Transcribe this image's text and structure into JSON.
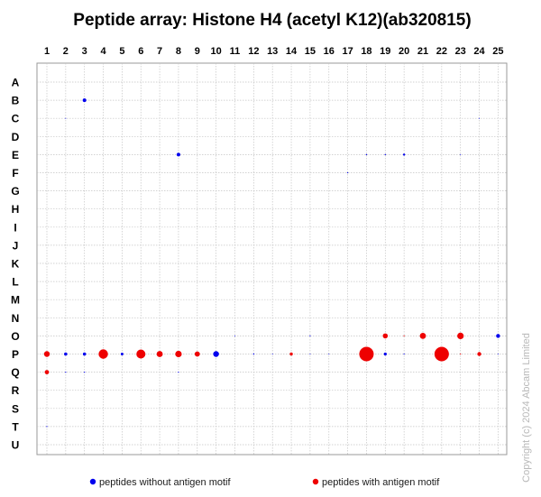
{
  "chart_data": {
    "type": "scatter",
    "title": "Peptide array: Histone H4 (acetyl K12)(ab320815)",
    "x_categories": [
      "1",
      "2",
      "3",
      "4",
      "5",
      "6",
      "7",
      "8",
      "9",
      "10",
      "11",
      "12",
      "13",
      "14",
      "15",
      "16",
      "17",
      "18",
      "19",
      "20",
      "21",
      "22",
      "23",
      "24",
      "25"
    ],
    "y_categories": [
      "A",
      "B",
      "C",
      "D",
      "E",
      "F",
      "G",
      "H",
      "I",
      "J",
      "K",
      "L",
      "M",
      "N",
      "O",
      "P",
      "Q",
      "R",
      "S",
      "T",
      "U"
    ],
    "grid": true,
    "legend_position": "bottom",
    "series": [
      {
        "name": "peptides without antigen motif",
        "color": "#0000ee",
        "points": [
          {
            "col": 3,
            "row": "B",
            "value": 2
          },
          {
            "col": 2,
            "row": "C",
            "value": 0.5
          },
          {
            "col": 24,
            "row": "C",
            "value": 0.5
          },
          {
            "col": 8,
            "row": "E",
            "value": 2
          },
          {
            "col": 18,
            "row": "E",
            "value": 0.7
          },
          {
            "col": 19,
            "row": "E",
            "value": 0.7
          },
          {
            "col": 20,
            "row": "E",
            "value": 1.2
          },
          {
            "col": 23,
            "row": "E",
            "value": 0.5
          },
          {
            "col": 17,
            "row": "F",
            "value": 0.6
          },
          {
            "col": 11,
            "row": "O",
            "value": 0.5
          },
          {
            "col": 15,
            "row": "O",
            "value": 0.6
          },
          {
            "col": 25,
            "row": "O",
            "value": 2.2
          },
          {
            "col": 2,
            "row": "P",
            "value": 1.8
          },
          {
            "col": 3,
            "row": "P",
            "value": 1.8
          },
          {
            "col": 5,
            "row": "P",
            "value": 1.5
          },
          {
            "col": 10,
            "row": "P",
            "value": 3.2
          },
          {
            "col": 12,
            "row": "P",
            "value": 0.7
          },
          {
            "col": 13,
            "row": "P",
            "value": 0.5
          },
          {
            "col": 15,
            "row": "P",
            "value": 0.5
          },
          {
            "col": 16,
            "row": "P",
            "value": 0.5
          },
          {
            "col": 19,
            "row": "P",
            "value": 1.6
          },
          {
            "col": 20,
            "row": "P",
            "value": 0.6
          },
          {
            "col": 25,
            "row": "P",
            "value": 0.5
          },
          {
            "col": 2,
            "row": "Q",
            "value": 0.6
          },
          {
            "col": 3,
            "row": "Q",
            "value": 0.6
          },
          {
            "col": 8,
            "row": "Q",
            "value": 0.6
          },
          {
            "col": 1,
            "row": "T",
            "value": 0.6
          }
        ]
      },
      {
        "name": "peptides with antigen motif",
        "color": "#ee0000",
        "points": [
          {
            "col": 19,
            "row": "O",
            "value": 2.8
          },
          {
            "col": 20,
            "row": "O",
            "value": 0.6
          },
          {
            "col": 21,
            "row": "O",
            "value": 3.4
          },
          {
            "col": 23,
            "row": "O",
            "value": 3.6
          },
          {
            "col": 1,
            "row": "P",
            "value": 3.2
          },
          {
            "col": 4,
            "row": "P",
            "value": 5.2
          },
          {
            "col": 6,
            "row": "P",
            "value": 5.0
          },
          {
            "col": 7,
            "row": "P",
            "value": 3.4
          },
          {
            "col": 8,
            "row": "P",
            "value": 3.6
          },
          {
            "col": 9,
            "row": "P",
            "value": 2.9
          },
          {
            "col": 14,
            "row": "P",
            "value": 1.7
          },
          {
            "col": 18,
            "row": "P",
            "value": 8.0
          },
          {
            "col": 22,
            "row": "P",
            "value": 8.0
          },
          {
            "col": 23,
            "row": "P",
            "value": 0.6
          },
          {
            "col": 24,
            "row": "P",
            "value": 2.2
          },
          {
            "col": 1,
            "row": "Q",
            "value": 2.4
          }
        ]
      }
    ],
    "legend": [
      {
        "label": "peptides without antigen motif",
        "color": "#0000ee"
      },
      {
        "label": "peptides with antigen motif",
        "color": "#ee0000"
      }
    ],
    "copyright": "Copyright (c) 2024 Abcam Limited"
  }
}
